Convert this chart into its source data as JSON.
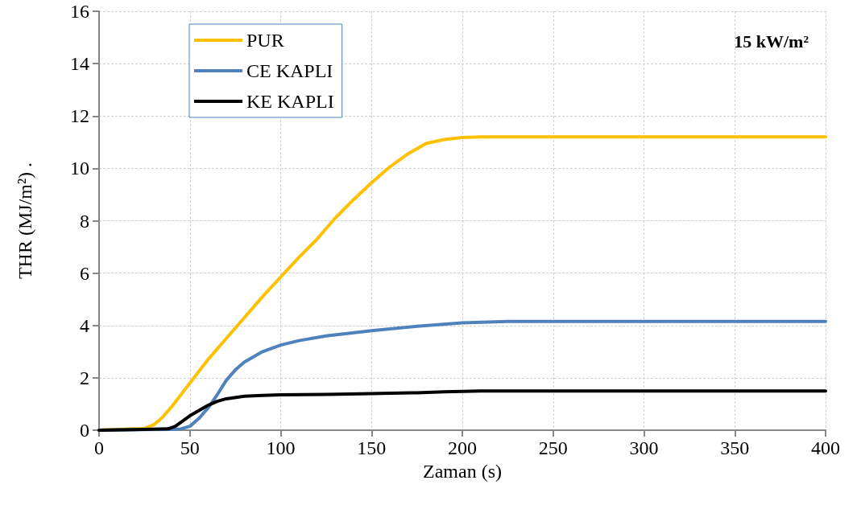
{
  "chart_data": {
    "type": "line",
    "xlabel": "Zaman (s)",
    "ylabel": "THR (MJ/m²) .",
    "annotations": [
      "15 kW/m²"
    ],
    "xlim": [
      0,
      400
    ],
    "xticks": [
      0,
      50,
      100,
      150,
      200,
      250,
      300,
      350,
      400
    ],
    "ylim": [
      0,
      16
    ],
    "yticks": [
      0,
      2,
      4,
      6,
      8,
      10,
      12,
      14,
      16
    ],
    "grid": true,
    "legend": "top left",
    "marker": "none",
    "line_style": "solid",
    "series": [
      {
        "name": "PUR",
        "color": "#ffc000",
        "x": [
          0,
          10,
          20,
          25,
          30,
          35,
          40,
          50,
          60,
          70,
          80,
          90,
          100,
          110,
          120,
          130,
          140,
          150,
          160,
          170,
          175,
          180,
          190,
          200,
          210,
          250,
          300,
          350,
          400
        ],
        "values": [
          0,
          0.03,
          0.05,
          0.07,
          0.2,
          0.5,
          0.9,
          1.8,
          2.7,
          3.5,
          4.3,
          5.1,
          5.85,
          6.6,
          7.3,
          8.1,
          8.8,
          9.45,
          10.05,
          10.55,
          10.75,
          10.95,
          11.1,
          11.18,
          11.2,
          11.2,
          11.2,
          11.2,
          11.2
        ]
      },
      {
        "name": "CE KAPLI",
        "color": "#4f81bd",
        "x": [
          0,
          20,
          40,
          45,
          50,
          55,
          60,
          65,
          70,
          75,
          80,
          90,
          100,
          110,
          125,
          150,
          175,
          200,
          225,
          250,
          300,
          350,
          400
        ],
        "values": [
          0,
          0.02,
          0.03,
          0.05,
          0.15,
          0.45,
          0.85,
          1.35,
          1.9,
          2.3,
          2.6,
          3.0,
          3.25,
          3.42,
          3.6,
          3.8,
          3.97,
          4.1,
          4.15,
          4.15,
          4.15,
          4.15,
          4.15
        ]
      },
      {
        "name": "KE KAPLI",
        "color": "#000000",
        "x": [
          0,
          20,
          38,
          42,
          46,
          50,
          55,
          60,
          65,
          70,
          80,
          90,
          100,
          125,
          150,
          175,
          190,
          210,
          250,
          300,
          350,
          400
        ],
        "values": [
          0,
          0.02,
          0.05,
          0.15,
          0.35,
          0.55,
          0.75,
          0.95,
          1.1,
          1.2,
          1.3,
          1.33,
          1.35,
          1.37,
          1.4,
          1.43,
          1.47,
          1.5,
          1.5,
          1.5,
          1.5,
          1.5
        ]
      }
    ]
  }
}
